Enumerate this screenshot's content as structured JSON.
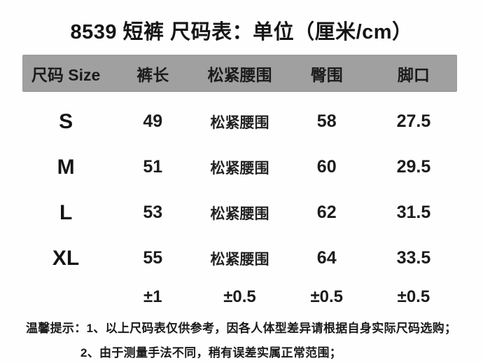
{
  "title": "8539 短裤 尺码表：单位（厘米/cm）",
  "colors": {
    "header_bg": "#a0a0a0",
    "text": "#1e1e1e",
    "background": "#fefefe"
  },
  "table": {
    "headers": [
      "尺码 Size",
      "裤长",
      "松紧腰围",
      "臀围",
      "脚口"
    ],
    "rows": [
      [
        "S",
        "49",
        "松紧腰围",
        "58",
        "27.5"
      ],
      [
        "M",
        "51",
        "松紧腰围",
        "60",
        "29.5"
      ],
      [
        "L",
        "53",
        "松紧腰围",
        "62",
        "31.5"
      ],
      [
        "XL",
        "55",
        "松紧腰围",
        "64",
        "33.5"
      ]
    ],
    "tolerance": [
      "",
      "±1",
      "±0.5",
      "±0.5",
      "±0.5"
    ]
  },
  "notes": {
    "prefix": "温馨提示：",
    "items": [
      "1、以上尺码表仅供参考，因各人体型差异请根据自身实际尺码选购；",
      "2、由于测量手法不同，稍有误差实属正常范围；"
    ]
  }
}
